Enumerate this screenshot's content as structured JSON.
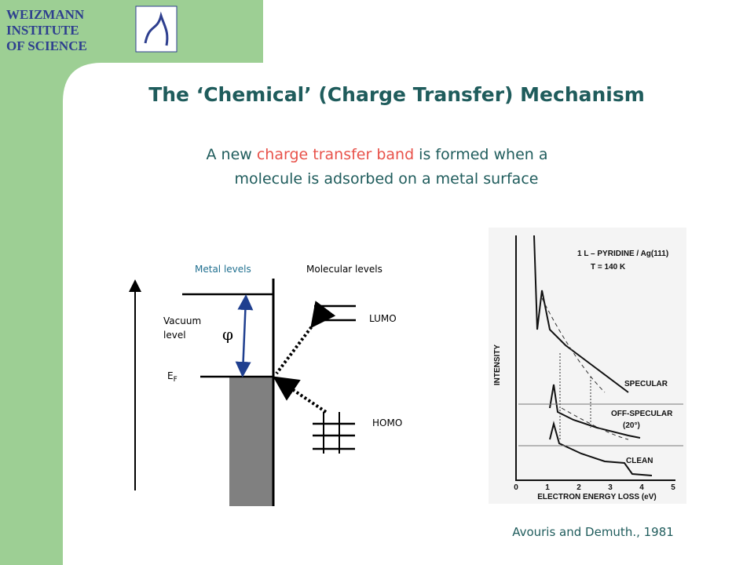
{
  "logo": {
    "lines": [
      "WEIZMANN",
      "INSTITUTE",
      "OF SCIENCE"
    ]
  },
  "title": "The ‘Chemical’ (Charge Transfer) Mechanism",
  "subtitle": {
    "before": "A new ",
    "highlight": "charge transfer band",
    "after": " is formed when a",
    "line2": "molecule is adsorbed on a metal surface"
  },
  "diagram": {
    "metal_levels": "Metal levels",
    "molecular_levels": "Molecular levels",
    "vacuum": "Vacuum",
    "level": "level",
    "phi": "φ",
    "ef": "E",
    "ef_sub": "F",
    "lumo": "LUMO",
    "homo": "HOMO"
  },
  "figure": {
    "header": "1 L – PYRIDINE / Ag(111)",
    "temp": "T = 140 K",
    "y_label": "INTENSITY",
    "x_label": "ELECTRON ENERGY LOSS (eV)",
    "specular": "SPECULAR",
    "off_specular": "OFF-SPECULAR",
    "angle": "(20°)",
    "clean": "CLEAN",
    "ticks": [
      "0",
      "1",
      "2",
      "3",
      "4",
      "5"
    ]
  },
  "caption": "Avouris and Demuth., 1981"
}
